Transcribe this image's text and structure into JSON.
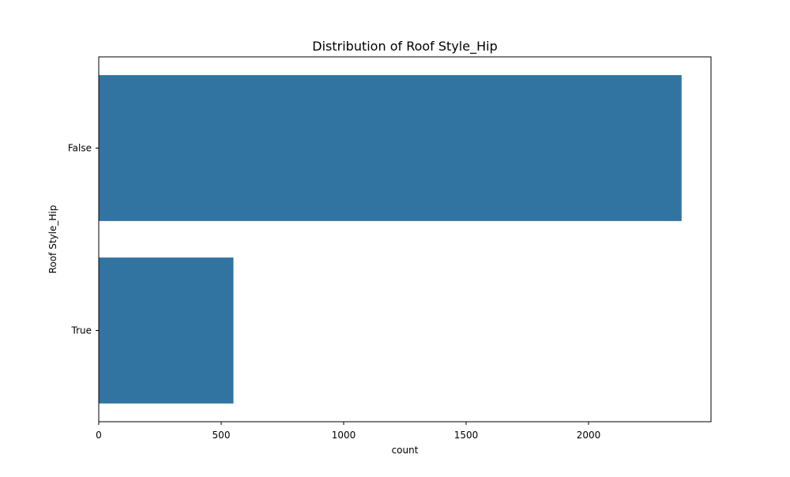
{
  "chart_data": {
    "type": "bar",
    "orientation": "horizontal",
    "title": "Distribution of Roof Style_Hip",
    "xlabel": "count",
    "ylabel": "Roof Style_Hip",
    "categories": [
      "False",
      "True"
    ],
    "values": [
      2380,
      550
    ],
    "xlim": [
      0,
      2500
    ],
    "xticks": [
      0,
      500,
      1000,
      1500,
      2000
    ],
    "grid": false,
    "bar_color": "#3274a1"
  }
}
